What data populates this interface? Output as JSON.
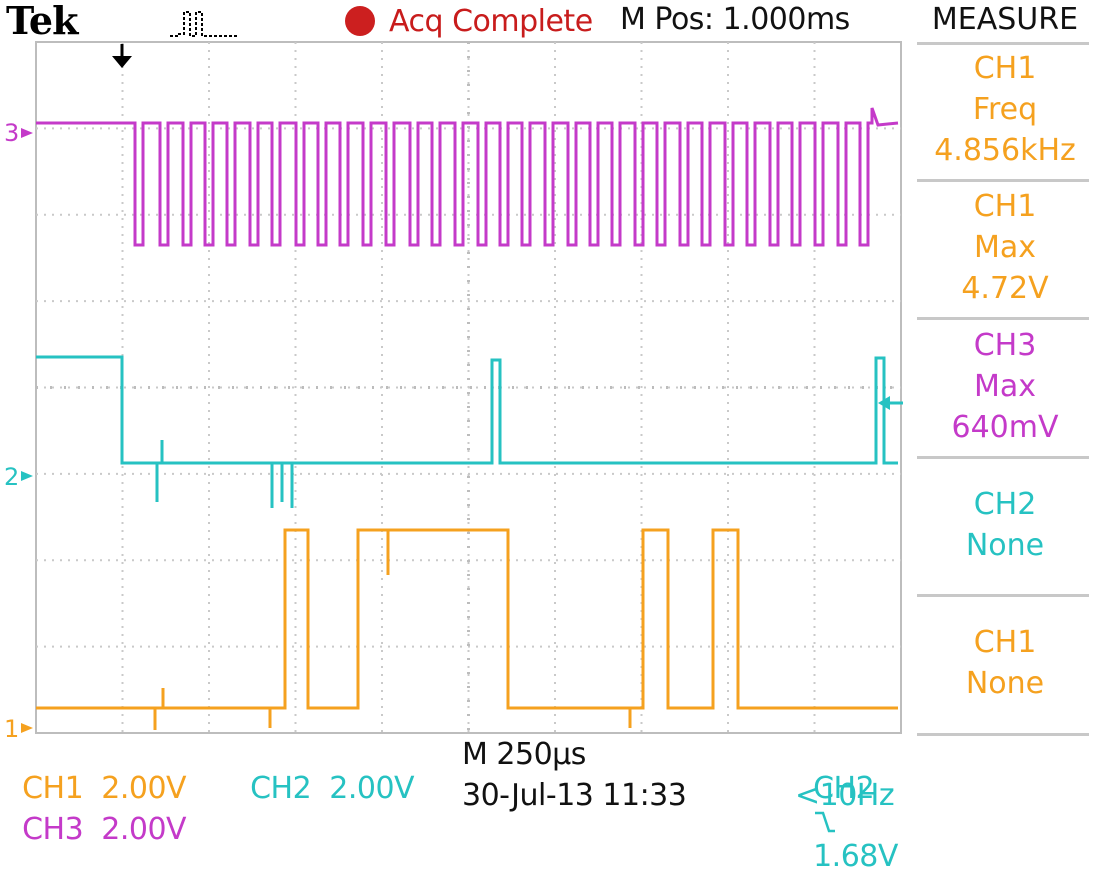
{
  "header": {
    "brand": "Tek",
    "trigger_status": "Acq Complete",
    "main_position": "M Pos: 1.000ms"
  },
  "channel_markers": {
    "ch1": "1",
    "ch2": "2",
    "ch3": "3"
  },
  "measure": {
    "title": "MEASURE",
    "items": [
      {
        "source": "CH1",
        "type": "Freq",
        "value": "4.856kHz",
        "color": "#f5a11f"
      },
      {
        "source": "CH1",
        "type": "Max",
        "value": "4.72V",
        "color": "#f5a11f"
      },
      {
        "source": "CH3",
        "type": "Max",
        "value": "640mV",
        "color": "#c43ac9"
      },
      {
        "source": "CH2",
        "type": "None",
        "color": "#26c2c2"
      },
      {
        "source": "CH1",
        "type": "None",
        "color": "#f5a11f"
      }
    ]
  },
  "status_bar": {
    "ch1_label": "CH1",
    "ch1_scale": "2.00V",
    "ch2_label": "CH2",
    "ch2_scale": "2.00V",
    "ch3_label": "CH3",
    "ch3_scale": "2.00V",
    "timebase": "M 250µs",
    "date_time": "30-Jul-13 11:33",
    "trigger_source": "CH2",
    "trigger_slope_icon": "falling-edge-icon",
    "trigger_level": "1.68V",
    "trigger_freq": "<10Hz"
  },
  "colors": {
    "ch1": "#f5a11f",
    "ch2": "#26c2c2",
    "ch3": "#c43ac9",
    "acquisition_status": "#c81c1c"
  }
}
